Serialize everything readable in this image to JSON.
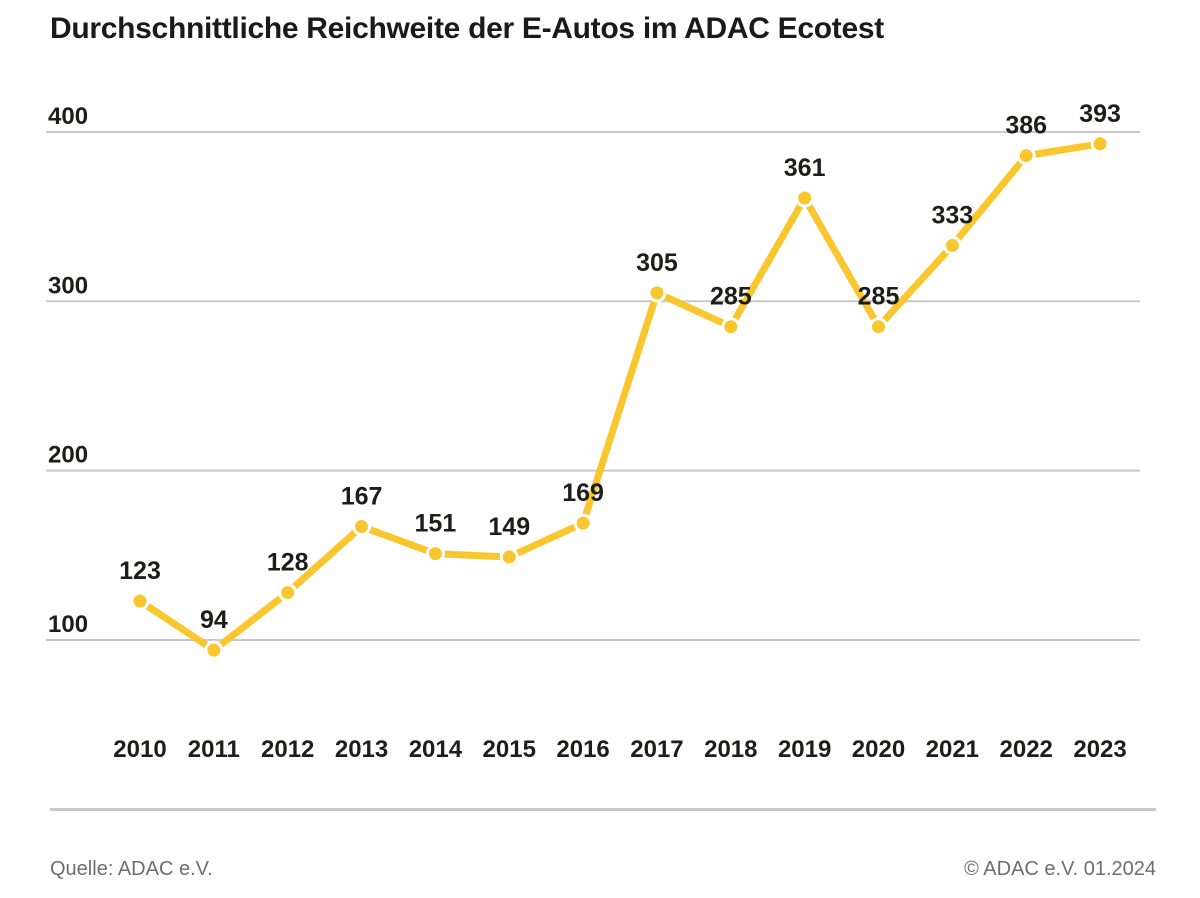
{
  "title": "Durchschnittliche Reichweite der E-Autos im ADAC Ecotest",
  "footer": {
    "source": "Quelle: ADAC e.V.",
    "copyright": "© ADAC e.V. 01.2024"
  },
  "chart_data": {
    "type": "line",
    "title": "Durchschnittliche Reichweite der E-Autos im ADAC Ecotest",
    "categories": [
      "2010",
      "2011",
      "2012",
      "2013",
      "2014",
      "2015",
      "2016",
      "2017",
      "2018",
      "2019",
      "2020",
      "2021",
      "2022",
      "2023"
    ],
    "values": [
      123,
      94,
      128,
      167,
      151,
      149,
      169,
      305,
      285,
      361,
      285,
      333,
      386,
      393
    ],
    "xlabel": "",
    "ylabel": "",
    "yticks": [
      100,
      200,
      300,
      400
    ],
    "ylim": [
      60,
      420
    ],
    "grid": true,
    "legend": false,
    "data_labels": true,
    "colors": {
      "line": "#FAC62E",
      "point_border": "#FFFFFF",
      "grid": "#C8C8C8",
      "label": "#1D1D1B",
      "title": "#1A1A1A",
      "footer_text": "#6E6E6E"
    }
  }
}
